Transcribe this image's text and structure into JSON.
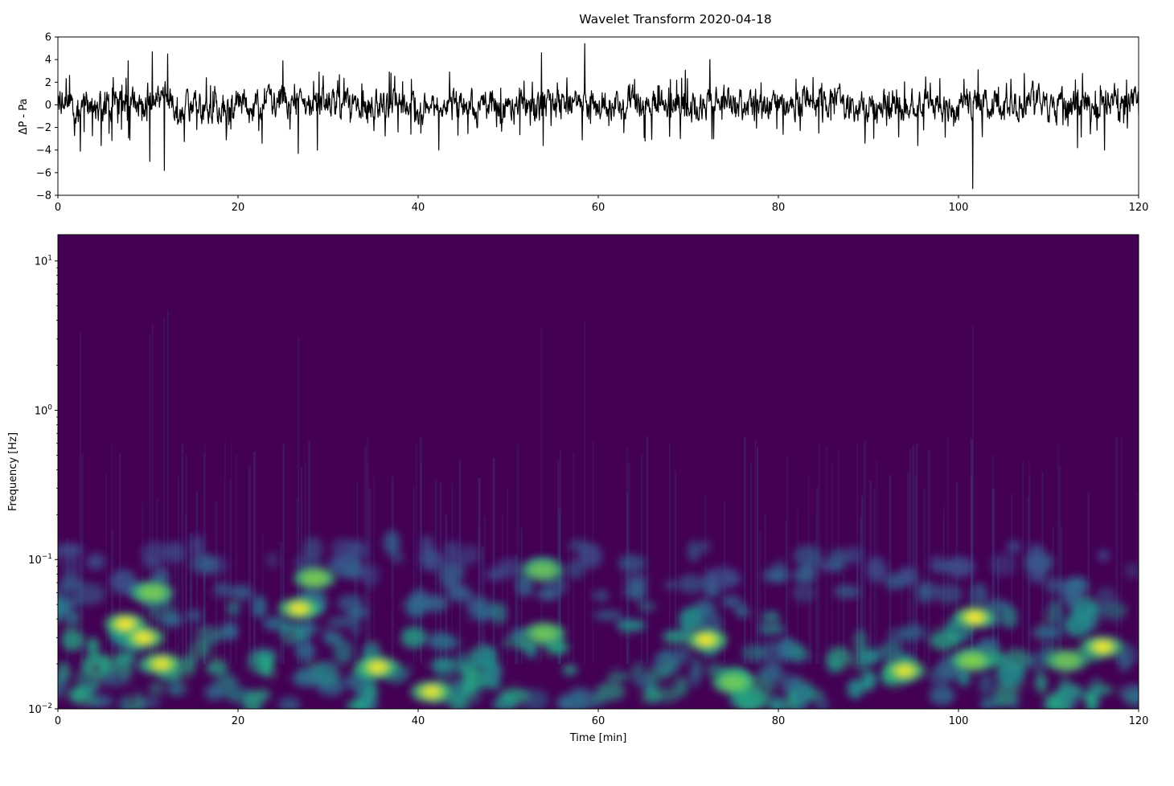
{
  "chart_data": [
    {
      "type": "line",
      "title": "Wavelet Transform 2020-04-18",
      "xlabel": "",
      "ylabel": "ΔP - Pa",
      "xlim": [
        0,
        120
      ],
      "ylim": [
        -8,
        6
      ],
      "xticks": [
        "0",
        "20",
        "40",
        "60",
        "80",
        "100",
        "120"
      ],
      "yticks": [
        "−8",
        "−6",
        "−4",
        "−2",
        "0",
        "2",
        "4",
        "6"
      ],
      "line_color": "#000000",
      "grid": false,
      "spikes": [
        {
          "x": 1.3,
          "y": 2.6
        },
        {
          "x": 2.5,
          "y": -4.1
        },
        {
          "x": 4.8,
          "y": -3.6
        },
        {
          "x": 7.8,
          "y": 3.9
        },
        {
          "x": 8.0,
          "y": -3.1
        },
        {
          "x": 10.2,
          "y": -5.0
        },
        {
          "x": 10.5,
          "y": 4.7
        },
        {
          "x": 11.8,
          "y": -5.8
        },
        {
          "x": 12.2,
          "y": 4.5
        },
        {
          "x": 16.5,
          "y": 2.4
        },
        {
          "x": 18.7,
          "y": -3.1
        },
        {
          "x": 25.0,
          "y": 3.9
        },
        {
          "x": 26.7,
          "y": -4.3
        },
        {
          "x": 28.8,
          "y": -4.0
        },
        {
          "x": 29.0,
          "y": 2.9
        },
        {
          "x": 36.8,
          "y": 2.9
        },
        {
          "x": 40.3,
          "y": -2.5
        },
        {
          "x": 42.3,
          "y": -4.0
        },
        {
          "x": 53.7,
          "y": 4.6
        },
        {
          "x": 53.9,
          "y": -3.6
        },
        {
          "x": 58.5,
          "y": 5.4
        },
        {
          "x": 58.2,
          "y": -3.1
        },
        {
          "x": 65.2,
          "y": -3.2
        },
        {
          "x": 72.4,
          "y": 4.0
        },
        {
          "x": 72.8,
          "y": -3.0
        },
        {
          "x": 84.5,
          "y": -2.5
        },
        {
          "x": 89.6,
          "y": -3.4
        },
        {
          "x": 95.5,
          "y": -3.6
        },
        {
          "x": 101.6,
          "y": -7.4
        },
        {
          "x": 102.2,
          "y": 3.1
        },
        {
          "x": 113.2,
          "y": -3.8
        },
        {
          "x": 113.0,
          "y": 2.2
        },
        {
          "x": 116.2,
          "y": -4.0
        },
        {
          "x": 117.3,
          "y": 1.9
        }
      ]
    },
    {
      "type": "heatmap",
      "title": "",
      "xlabel": "Time  [min]",
      "ylabel": "Frequency [Hz]",
      "xlim": [
        0,
        120
      ],
      "ylim": [
        0.01,
        15
      ],
      "yscale": "log",
      "colormap": "viridis",
      "xticks": [
        "0",
        "20",
        "40",
        "60",
        "80",
        "100",
        "120"
      ],
      "yticks": [
        {
          "base": "10",
          "exp": "−2",
          "value": 0.01
        },
        {
          "base": "10",
          "exp": "−1",
          "value": 0.1
        },
        {
          "base": "10",
          "exp": "0",
          "value": 1
        },
        {
          "base": "10",
          "exp": "1",
          "value": 10
        }
      ],
      "hotspots": [
        {
          "t": 7.5,
          "f": 0.037,
          "power": 1.0
        },
        {
          "t": 9.5,
          "f": 0.03,
          "power": 0.95
        },
        {
          "t": 10.5,
          "f": 0.06,
          "power": 0.7
        },
        {
          "t": 11.5,
          "f": 0.02,
          "power": 0.85
        },
        {
          "t": 26.8,
          "f": 0.047,
          "power": 0.9
        },
        {
          "t": 28.5,
          "f": 0.075,
          "power": 0.7
        },
        {
          "t": 35.5,
          "f": 0.019,
          "power": 0.9
        },
        {
          "t": 41.5,
          "f": 0.013,
          "power": 0.85
        },
        {
          "t": 53.8,
          "f": 0.085,
          "power": 0.55
        },
        {
          "t": 54.0,
          "f": 0.032,
          "power": 0.6
        },
        {
          "t": 72.0,
          "f": 0.029,
          "power": 0.95
        },
        {
          "t": 75.0,
          "f": 0.015,
          "power": 0.65
        },
        {
          "t": 94.0,
          "f": 0.018,
          "power": 0.85
        },
        {
          "t": 101.8,
          "f": 0.041,
          "power": 1.0
        },
        {
          "t": 101.5,
          "f": 0.021,
          "power": 0.8
        },
        {
          "t": 112.0,
          "f": 0.021,
          "power": 0.6
        },
        {
          "t": 116.0,
          "f": 0.026,
          "power": 0.95
        }
      ]
    }
  ]
}
